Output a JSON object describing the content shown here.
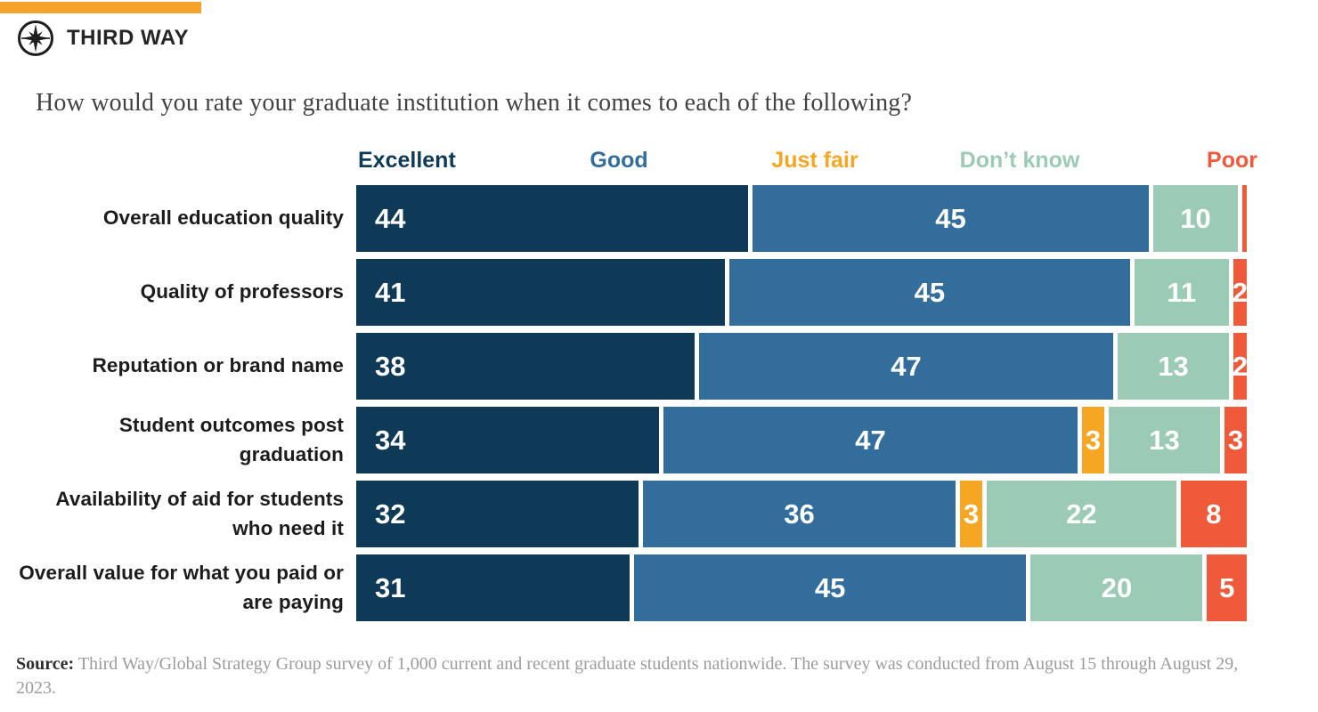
{
  "brand": {
    "name": "THIRD WAY",
    "accent_color": "#F7A32B"
  },
  "source": {
    "label": "Source:",
    "text": "Third Way/Global Strategy Group survey of 1,000 current and recent graduate students nationwide. The survey was conducted from August 15 through August 29, 2023."
  },
  "chart_data": {
    "type": "bar",
    "stacked": true,
    "orientation": "horizontal",
    "unit": "percent",
    "x_range_percent": [
      0,
      100
    ],
    "grid": false,
    "legend_position": "top",
    "value_label_color": "#ffffff",
    "value_labels_hidden_below": 2,
    "title": "How would you rate your graduate institution when it comes to each of the following?",
    "categories": [
      "Overall education quality",
      "Quality of professors",
      "Reputation or brand name",
      "Student outcomes post graduation",
      "Availability of aid for students who need it",
      "Overall value for what you paid or are paying"
    ],
    "series": [
      {
        "name": "Excellent",
        "color": "#0e3a57",
        "values": [
          44,
          41,
          38,
          34,
          32,
          31
        ]
      },
      {
        "name": "Good",
        "color": "#336d9c",
        "values": [
          45,
          45,
          47,
          47,
          36,
          45
        ]
      },
      {
        "name": "Just fair",
        "color": "#f5a623",
        "values": [
          0,
          0,
          0,
          3,
          3,
          0
        ]
      },
      {
        "name": "Don’t know",
        "color": "#9ccbb5",
        "values": [
          10,
          11,
          13,
          13,
          22,
          20
        ]
      },
      {
        "name": "Poor",
        "color": "#ef5a3a",
        "values": [
          1,
          2,
          2,
          3,
          8,
          5
        ]
      }
    ]
  }
}
